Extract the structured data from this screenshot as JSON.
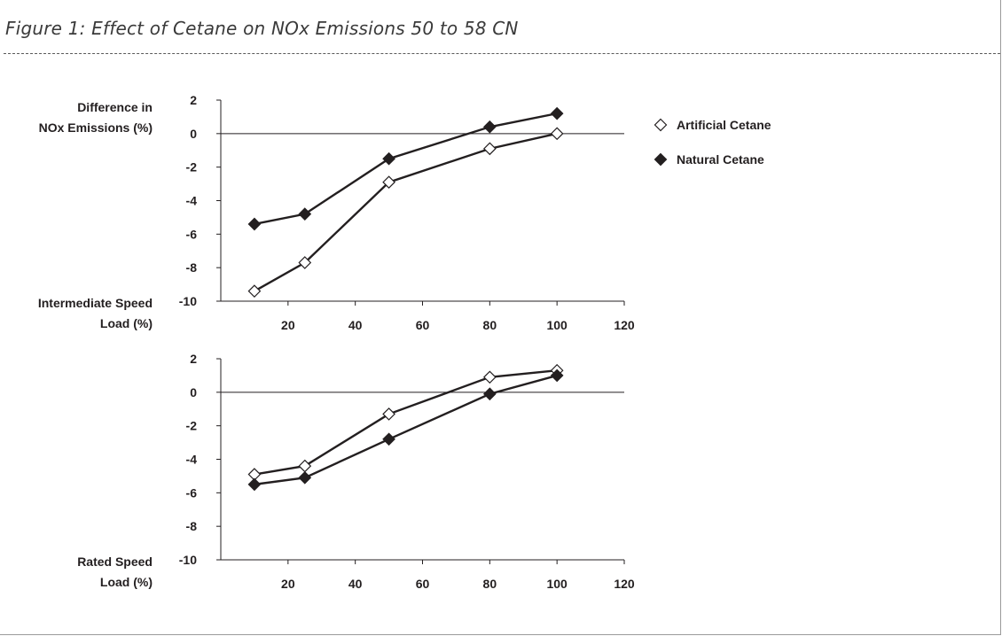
{
  "figure": {
    "title": "Figure 1: Effect of Cetane on NOx Emissions 50 to 58 CN"
  },
  "legend": {
    "position": "right",
    "items": [
      {
        "label": "Artificial Cetane",
        "marker": "open-diamond",
        "color": "#ffffff"
      },
      {
        "label": "Natural Cetane",
        "marker": "filled-diamond",
        "color": "#231f20"
      }
    ]
  },
  "colors": {
    "ink": "#231f20",
    "open_fill": "#ffffff"
  },
  "chart_data": [
    {
      "type": "line",
      "panel": "Intermediate Speed",
      "ylabel": [
        "Difference in",
        "NOx Emissions (%)"
      ],
      "xlabel": [
        "Intermediate Speed",
        "Load (%)"
      ],
      "ylim": [
        -10,
        2
      ],
      "yticks": [
        2,
        0,
        -2,
        -4,
        -6,
        -8,
        -10
      ],
      "xlim": [
        0,
        120
      ],
      "xticks": [
        20,
        40,
        60,
        80,
        100,
        120
      ],
      "reference_line_y": 0,
      "series": [
        {
          "name": "Artificial Cetane",
          "marker": "open-diamond",
          "x": [
            10,
            25,
            50,
            80,
            100
          ],
          "y": [
            -9.4,
            -7.7,
            -2.9,
            -0.9,
            0.0
          ]
        },
        {
          "name": "Natural Cetane",
          "marker": "filled-diamond",
          "x": [
            10,
            25,
            50,
            80,
            100
          ],
          "y": [
            -5.4,
            -4.8,
            -1.5,
            0.4,
            1.2
          ]
        }
      ]
    },
    {
      "type": "line",
      "panel": "Rated Speed",
      "xlabel": [
        "Rated Speed",
        "Load (%)"
      ],
      "ylim": [
        -10,
        2
      ],
      "yticks": [
        2,
        0,
        -2,
        -4,
        -6,
        -8,
        -10
      ],
      "xlim": [
        0,
        120
      ],
      "xticks": [
        20,
        40,
        60,
        80,
        100,
        120
      ],
      "reference_line_y": 0,
      "series": [
        {
          "name": "Artificial Cetane",
          "marker": "open-diamond",
          "x": [
            10,
            25,
            50,
            80,
            100
          ],
          "y": [
            -4.9,
            -4.4,
            -1.3,
            0.9,
            1.3
          ]
        },
        {
          "name": "Natural Cetane",
          "marker": "filled-diamond",
          "x": [
            10,
            25,
            50,
            80,
            100
          ],
          "y": [
            -5.5,
            -5.1,
            -2.8,
            -0.1,
            1.0
          ]
        }
      ]
    }
  ]
}
